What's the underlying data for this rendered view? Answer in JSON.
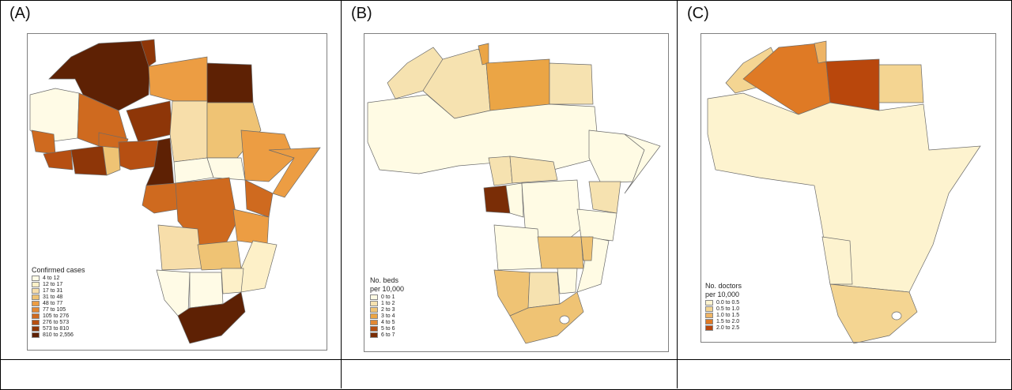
{
  "panels": [
    {
      "label": "(A)",
      "legend_title": "Confirmed cases",
      "legend_subtitle": "",
      "legend": [
        {
          "label": "4 to 12",
          "color": "#fffbe6"
        },
        {
          "label": "12 to 17",
          "color": "#fdf0c8"
        },
        {
          "label": "17 to 31",
          "color": "#f7deaa"
        },
        {
          "label": "31 to 48",
          "color": "#efc374"
        },
        {
          "label": "48 to 77",
          "color": "#ec9d43"
        },
        {
          "label": "77 to 105",
          "color": "#e28834"
        },
        {
          "label": "105 to 276",
          "color": "#cf6a1f"
        },
        {
          "label": "276 to 573",
          "color": "#b64f12"
        },
        {
          "label": "573 to 810",
          "color": "#8e3608"
        },
        {
          "label": "810 to 2,556",
          "color": "#5e2104"
        }
      ]
    },
    {
      "label": "(B)",
      "legend_title": "No. beds",
      "legend_subtitle": "per 10,000",
      "legend": [
        {
          "label": "0 to 1",
          "color": "#fffbe4"
        },
        {
          "label": "1 to 2",
          "color": "#f6e2b0"
        },
        {
          "label": "2 to 3",
          "color": "#efc374"
        },
        {
          "label": "3 to 4",
          "color": "#eba545"
        },
        {
          "label": "4 to 5",
          "color": "#e28834"
        },
        {
          "label": "5 to 6",
          "color": "#b64f12"
        },
        {
          "label": "6 to 7",
          "color": "#7a2d06"
        }
      ]
    },
    {
      "label": "(C)",
      "legend_title": "No. doctors",
      "legend_subtitle": "per 10,000",
      "legend": [
        {
          "label": "0.0 to 0.5",
          "color": "#fdf3cf"
        },
        {
          "label": "0.5 to 1.0",
          "color": "#f4d592"
        },
        {
          "label": "1.0 to 1.5",
          "color": "#eeb465"
        },
        {
          "label": "1.5 to 2.0",
          "color": "#df7a25"
        },
        {
          "label": "2.0 to 2.5",
          "color": "#b9470c"
        }
      ]
    }
  ]
}
